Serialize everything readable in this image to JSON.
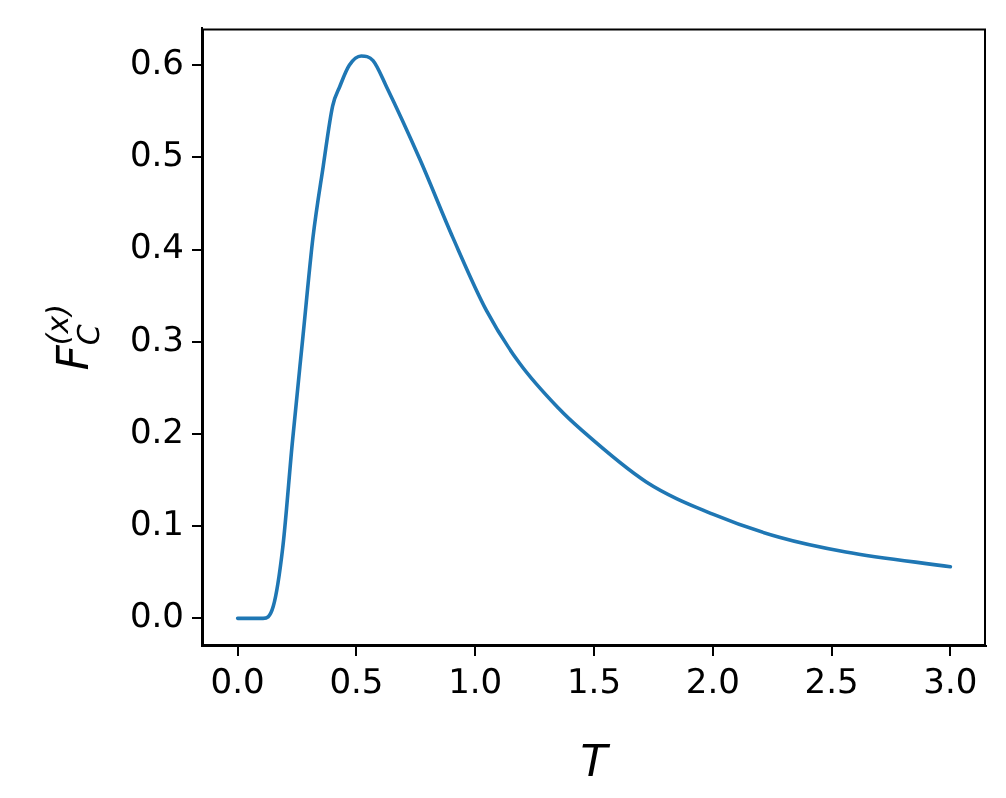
{
  "chart_data": {
    "type": "line",
    "xlabel": "T",
    "ylabel": "F$_{C}$$^{(x)}$",
    "x": [
      0,
      0.05,
      0.107,
      0.15,
      0.19,
      0.23,
      0.275,
      0.317,
      0.36,
      0.4,
      0.43,
      0.47,
      0.52,
      0.57,
      0.626,
      0.767,
      0.906,
      1.047,
      1.186,
      1.354,
      1.44,
      1.72,
      2.0,
      2.28,
      2.56,
      3.0
    ],
    "series": [
      {
        "color": "#1f77b4",
        "values": [
          0,
          0,
          0,
          0.013,
          0.077,
          0.19,
          0.306,
          0.413,
          0.49,
          0.556,
          0.577,
          0.6,
          0.61,
          0.605,
          0.577,
          0.498,
          0.413,
          0.334,
          0.277,
          0.227,
          0.206,
          0.148,
          0.113,
          0.088,
          0.072,
          0.056
        ]
      }
    ],
    "xlim": [
      -0.15,
      3.15
    ],
    "ylim": [
      -0.03,
      0.64
    ],
    "xticks": [
      {
        "value": 0,
        "label": "0.0"
      },
      {
        "value": 0.5,
        "label": "0.5"
      },
      {
        "value": 1,
        "label": "1.0"
      },
      {
        "value": 1.5,
        "label": "1.5"
      },
      {
        "value": 2,
        "label": "2.0"
      },
      {
        "value": 2.5,
        "label": "2.5"
      },
      {
        "value": 3,
        "label": "3.0"
      }
    ],
    "yticks": [
      {
        "value": 0,
        "label": "0.0"
      },
      {
        "value": 0.1,
        "label": "0.1"
      },
      {
        "value": 0.2,
        "label": "0.2"
      },
      {
        "value": 0.3,
        "label": "0.3"
      },
      {
        "value": 0.4,
        "label": "0.4"
      },
      {
        "value": 0.5,
        "label": "0.5"
      },
      {
        "value": 0.6,
        "label": "0.6"
      }
    ],
    "grid": false,
    "legend": false,
    "marker": "none",
    "line_style": "solid"
  }
}
